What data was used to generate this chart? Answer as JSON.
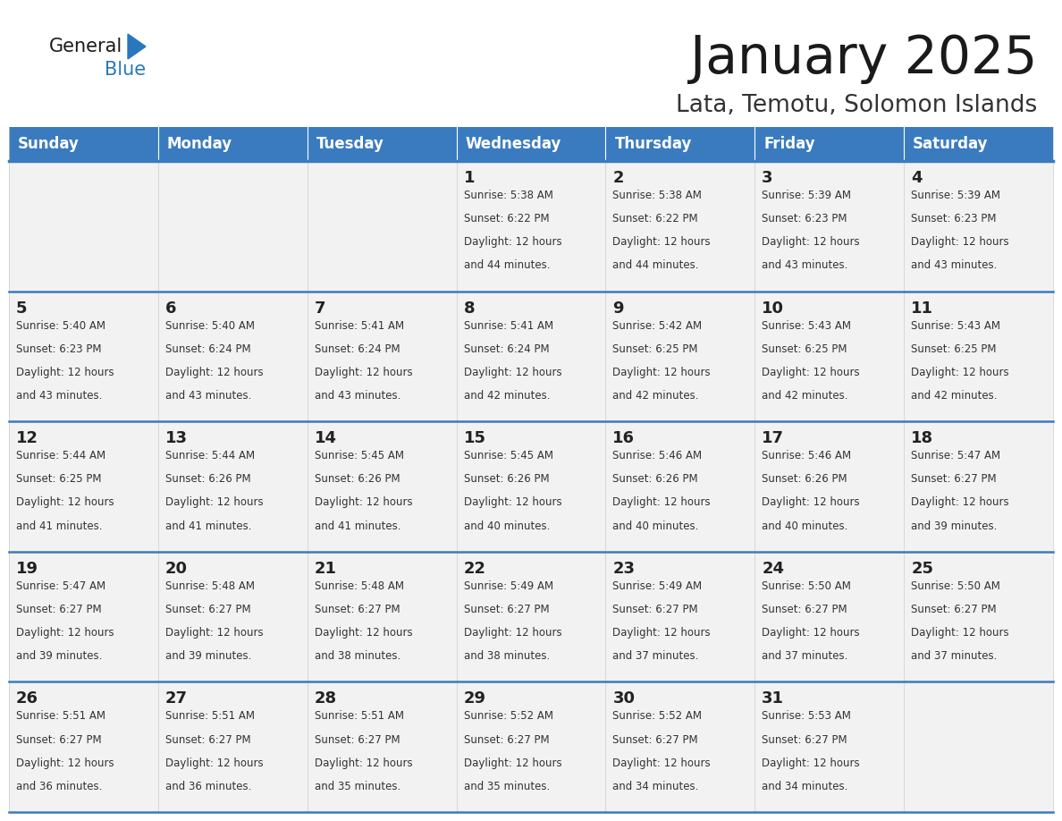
{
  "title": "January 2025",
  "subtitle": "Lata, Temotu, Solomon Islands",
  "days_of_week": [
    "Sunday",
    "Monday",
    "Tuesday",
    "Wednesday",
    "Thursday",
    "Friday",
    "Saturday"
  ],
  "header_bg": "#3a7bbf",
  "header_text": "#ffffff",
  "cell_bg": "#f2f2f2",
  "cell_bg_empty": "#f2f2f2",
  "grid_line_color": "#3a7bbf",
  "separator_color": "#5b9bd5",
  "day_num_color": "#222222",
  "cell_text_color": "#333333",
  "title_color": "#1a1a1a",
  "subtitle_color": "#333333",
  "logo_general_color": "#1a1a1a",
  "logo_blue_color": "#2878be",
  "calendar_data": [
    [
      null,
      null,
      null,
      {
        "day": 1,
        "sunrise": "5:38 AM",
        "sunset": "6:22 PM",
        "daylight_mins": 44
      },
      {
        "day": 2,
        "sunrise": "5:38 AM",
        "sunset": "6:22 PM",
        "daylight_mins": 44
      },
      {
        "day": 3,
        "sunrise": "5:39 AM",
        "sunset": "6:23 PM",
        "daylight_mins": 43
      },
      {
        "day": 4,
        "sunrise": "5:39 AM",
        "sunset": "6:23 PM",
        "daylight_mins": 43
      }
    ],
    [
      {
        "day": 5,
        "sunrise": "5:40 AM",
        "sunset": "6:23 PM",
        "daylight_mins": 43
      },
      {
        "day": 6,
        "sunrise": "5:40 AM",
        "sunset": "6:24 PM",
        "daylight_mins": 43
      },
      {
        "day": 7,
        "sunrise": "5:41 AM",
        "sunset": "6:24 PM",
        "daylight_mins": 43
      },
      {
        "day": 8,
        "sunrise": "5:41 AM",
        "sunset": "6:24 PM",
        "daylight_mins": 42
      },
      {
        "day": 9,
        "sunrise": "5:42 AM",
        "sunset": "6:25 PM",
        "daylight_mins": 42
      },
      {
        "day": 10,
        "sunrise": "5:43 AM",
        "sunset": "6:25 PM",
        "daylight_mins": 42
      },
      {
        "day": 11,
        "sunrise": "5:43 AM",
        "sunset": "6:25 PM",
        "daylight_mins": 42
      }
    ],
    [
      {
        "day": 12,
        "sunrise": "5:44 AM",
        "sunset": "6:25 PM",
        "daylight_mins": 41
      },
      {
        "day": 13,
        "sunrise": "5:44 AM",
        "sunset": "6:26 PM",
        "daylight_mins": 41
      },
      {
        "day": 14,
        "sunrise": "5:45 AM",
        "sunset": "6:26 PM",
        "daylight_mins": 41
      },
      {
        "day": 15,
        "sunrise": "5:45 AM",
        "sunset": "6:26 PM",
        "daylight_mins": 40
      },
      {
        "day": 16,
        "sunrise": "5:46 AM",
        "sunset": "6:26 PM",
        "daylight_mins": 40
      },
      {
        "day": 17,
        "sunrise": "5:46 AM",
        "sunset": "6:26 PM",
        "daylight_mins": 40
      },
      {
        "day": 18,
        "sunrise": "5:47 AM",
        "sunset": "6:27 PM",
        "daylight_mins": 39
      }
    ],
    [
      {
        "day": 19,
        "sunrise": "5:47 AM",
        "sunset": "6:27 PM",
        "daylight_mins": 39
      },
      {
        "day": 20,
        "sunrise": "5:48 AM",
        "sunset": "6:27 PM",
        "daylight_mins": 39
      },
      {
        "day": 21,
        "sunrise": "5:48 AM",
        "sunset": "6:27 PM",
        "daylight_mins": 38
      },
      {
        "day": 22,
        "sunrise": "5:49 AM",
        "sunset": "6:27 PM",
        "daylight_mins": 38
      },
      {
        "day": 23,
        "sunrise": "5:49 AM",
        "sunset": "6:27 PM",
        "daylight_mins": 37
      },
      {
        "day": 24,
        "sunrise": "5:50 AM",
        "sunset": "6:27 PM",
        "daylight_mins": 37
      },
      {
        "day": 25,
        "sunrise": "5:50 AM",
        "sunset": "6:27 PM",
        "daylight_mins": 37
      }
    ],
    [
      {
        "day": 26,
        "sunrise": "5:51 AM",
        "sunset": "6:27 PM",
        "daylight_mins": 36
      },
      {
        "day": 27,
        "sunrise": "5:51 AM",
        "sunset": "6:27 PM",
        "daylight_mins": 36
      },
      {
        "day": 28,
        "sunrise": "5:51 AM",
        "sunset": "6:27 PM",
        "daylight_mins": 35
      },
      {
        "day": 29,
        "sunrise": "5:52 AM",
        "sunset": "6:27 PM",
        "daylight_mins": 35
      },
      {
        "day": 30,
        "sunrise": "5:52 AM",
        "sunset": "6:27 PM",
        "daylight_mins": 34
      },
      {
        "day": 31,
        "sunrise": "5:53 AM",
        "sunset": "6:27 PM",
        "daylight_mins": 34
      },
      null
    ]
  ]
}
